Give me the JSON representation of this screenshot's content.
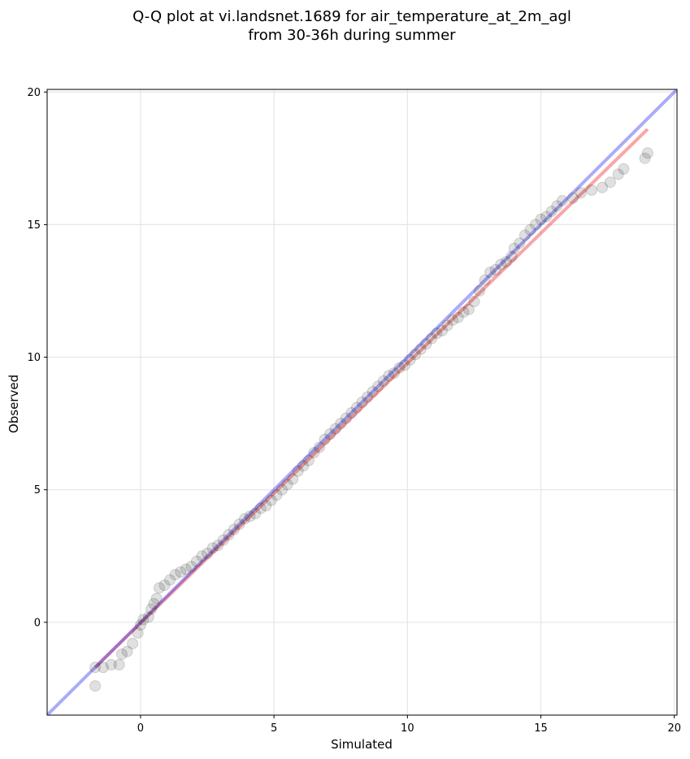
{
  "chart_data": {
    "type": "scatter",
    "title_lines": [
      "Q-Q plot at vi.landsnet.1689 for air_temperature_at_2m_agl",
      "from 30-36h during summer"
    ],
    "xlabel": "Simulated",
    "ylabel": "Observed",
    "xlim": [
      -3.5,
      20.1
    ],
    "ylim": [
      -3.5,
      20.1
    ],
    "x_ticks": [
      0,
      5,
      10,
      15,
      20
    ],
    "y_ticks": [
      0,
      5,
      10,
      15,
      20
    ],
    "grid": true,
    "colors": {
      "points": "#000000",
      "identity_line": "#0000ee",
      "fit_line": "#ee0000",
      "grid": "#e6e6e6"
    },
    "identity_line": {
      "from": [
        -3.5,
        -3.5
      ],
      "to": [
        20.1,
        20.1
      ]
    },
    "fit_line": {
      "from": [
        -1.7,
        -1.7
      ],
      "to": [
        19.0,
        18.6
      ]
    },
    "quantile_points": [
      [
        -1.7,
        -2.4
      ],
      [
        -1.7,
        -1.7
      ],
      [
        -1.4,
        -1.7
      ],
      [
        -1.1,
        -1.6
      ],
      [
        -0.8,
        -1.6
      ],
      [
        -0.7,
        -1.2
      ],
      [
        -0.5,
        -1.1
      ],
      [
        -0.3,
        -0.8
      ],
      [
        -0.1,
        -0.4
      ],
      [
        0.0,
        -0.1
      ],
      [
        0.1,
        0.1
      ],
      [
        0.3,
        0.2
      ],
      [
        0.4,
        0.5
      ],
      [
        0.5,
        0.7
      ],
      [
        0.6,
        0.9
      ],
      [
        0.7,
        1.3
      ],
      [
        0.9,
        1.4
      ],
      [
        1.1,
        1.6
      ],
      [
        1.3,
        1.8
      ],
      [
        1.5,
        1.9
      ],
      [
        1.7,
        2.0
      ],
      [
        1.9,
        2.1
      ],
      [
        2.1,
        2.3
      ],
      [
        2.3,
        2.5
      ],
      [
        2.5,
        2.6
      ],
      [
        2.7,
        2.8
      ],
      [
        2.9,
        2.9
      ],
      [
        3.1,
        3.1
      ],
      [
        3.3,
        3.3
      ],
      [
        3.5,
        3.5
      ],
      [
        3.7,
        3.7
      ],
      [
        3.9,
        3.9
      ],
      [
        4.1,
        4.0
      ],
      [
        4.3,
        4.1
      ],
      [
        4.5,
        4.3
      ],
      [
        4.7,
        4.4
      ],
      [
        4.9,
        4.6
      ],
      [
        5.1,
        4.8
      ],
      [
        5.3,
        5.0
      ],
      [
        5.5,
        5.2
      ],
      [
        5.7,
        5.4
      ],
      [
        5.9,
        5.7
      ],
      [
        6.1,
        5.9
      ],
      [
        6.3,
        6.1
      ],
      [
        6.5,
        6.4
      ],
      [
        6.7,
        6.6
      ],
      [
        6.9,
        6.9
      ],
      [
        7.1,
        7.1
      ],
      [
        7.3,
        7.3
      ],
      [
        7.5,
        7.5
      ],
      [
        7.7,
        7.7
      ],
      [
        7.9,
        7.9
      ],
      [
        8.1,
        8.1
      ],
      [
        8.3,
        8.3
      ],
      [
        8.5,
        8.5
      ],
      [
        8.7,
        8.7
      ],
      [
        8.9,
        8.9
      ],
      [
        9.1,
        9.1
      ],
      [
        9.3,
        9.3
      ],
      [
        9.5,
        9.4
      ],
      [
        9.7,
        9.6
      ],
      [
        9.9,
        9.7
      ],
      [
        10.1,
        9.9
      ],
      [
        10.3,
        10.1
      ],
      [
        10.5,
        10.3
      ],
      [
        10.7,
        10.5
      ],
      [
        10.9,
        10.7
      ],
      [
        11.1,
        10.9
      ],
      [
        11.3,
        11.0
      ],
      [
        11.5,
        11.2
      ],
      [
        11.7,
        11.4
      ],
      [
        11.9,
        11.5
      ],
      [
        12.1,
        11.7
      ],
      [
        12.3,
        11.8
      ],
      [
        12.5,
        12.1
      ],
      [
        12.7,
        12.5
      ],
      [
        12.9,
        12.9
      ],
      [
        13.1,
        13.2
      ],
      [
        13.3,
        13.3
      ],
      [
        13.5,
        13.5
      ],
      [
        13.7,
        13.6
      ],
      [
        13.9,
        13.8
      ],
      [
        14.0,
        14.1
      ],
      [
        14.2,
        14.3
      ],
      [
        14.4,
        14.6
      ],
      [
        14.6,
        14.8
      ],
      [
        14.8,
        15.0
      ],
      [
        15.0,
        15.2
      ],
      [
        15.2,
        15.3
      ],
      [
        15.4,
        15.5
      ],
      [
        15.6,
        15.7
      ],
      [
        15.8,
        15.9
      ],
      [
        16.2,
        16.0
      ],
      [
        16.5,
        16.2
      ],
      [
        16.9,
        16.3
      ],
      [
        17.3,
        16.4
      ],
      [
        17.6,
        16.6
      ],
      [
        17.9,
        16.9
      ],
      [
        18.1,
        17.1
      ],
      [
        18.9,
        17.5
      ],
      [
        19.0,
        17.7
      ]
    ]
  }
}
